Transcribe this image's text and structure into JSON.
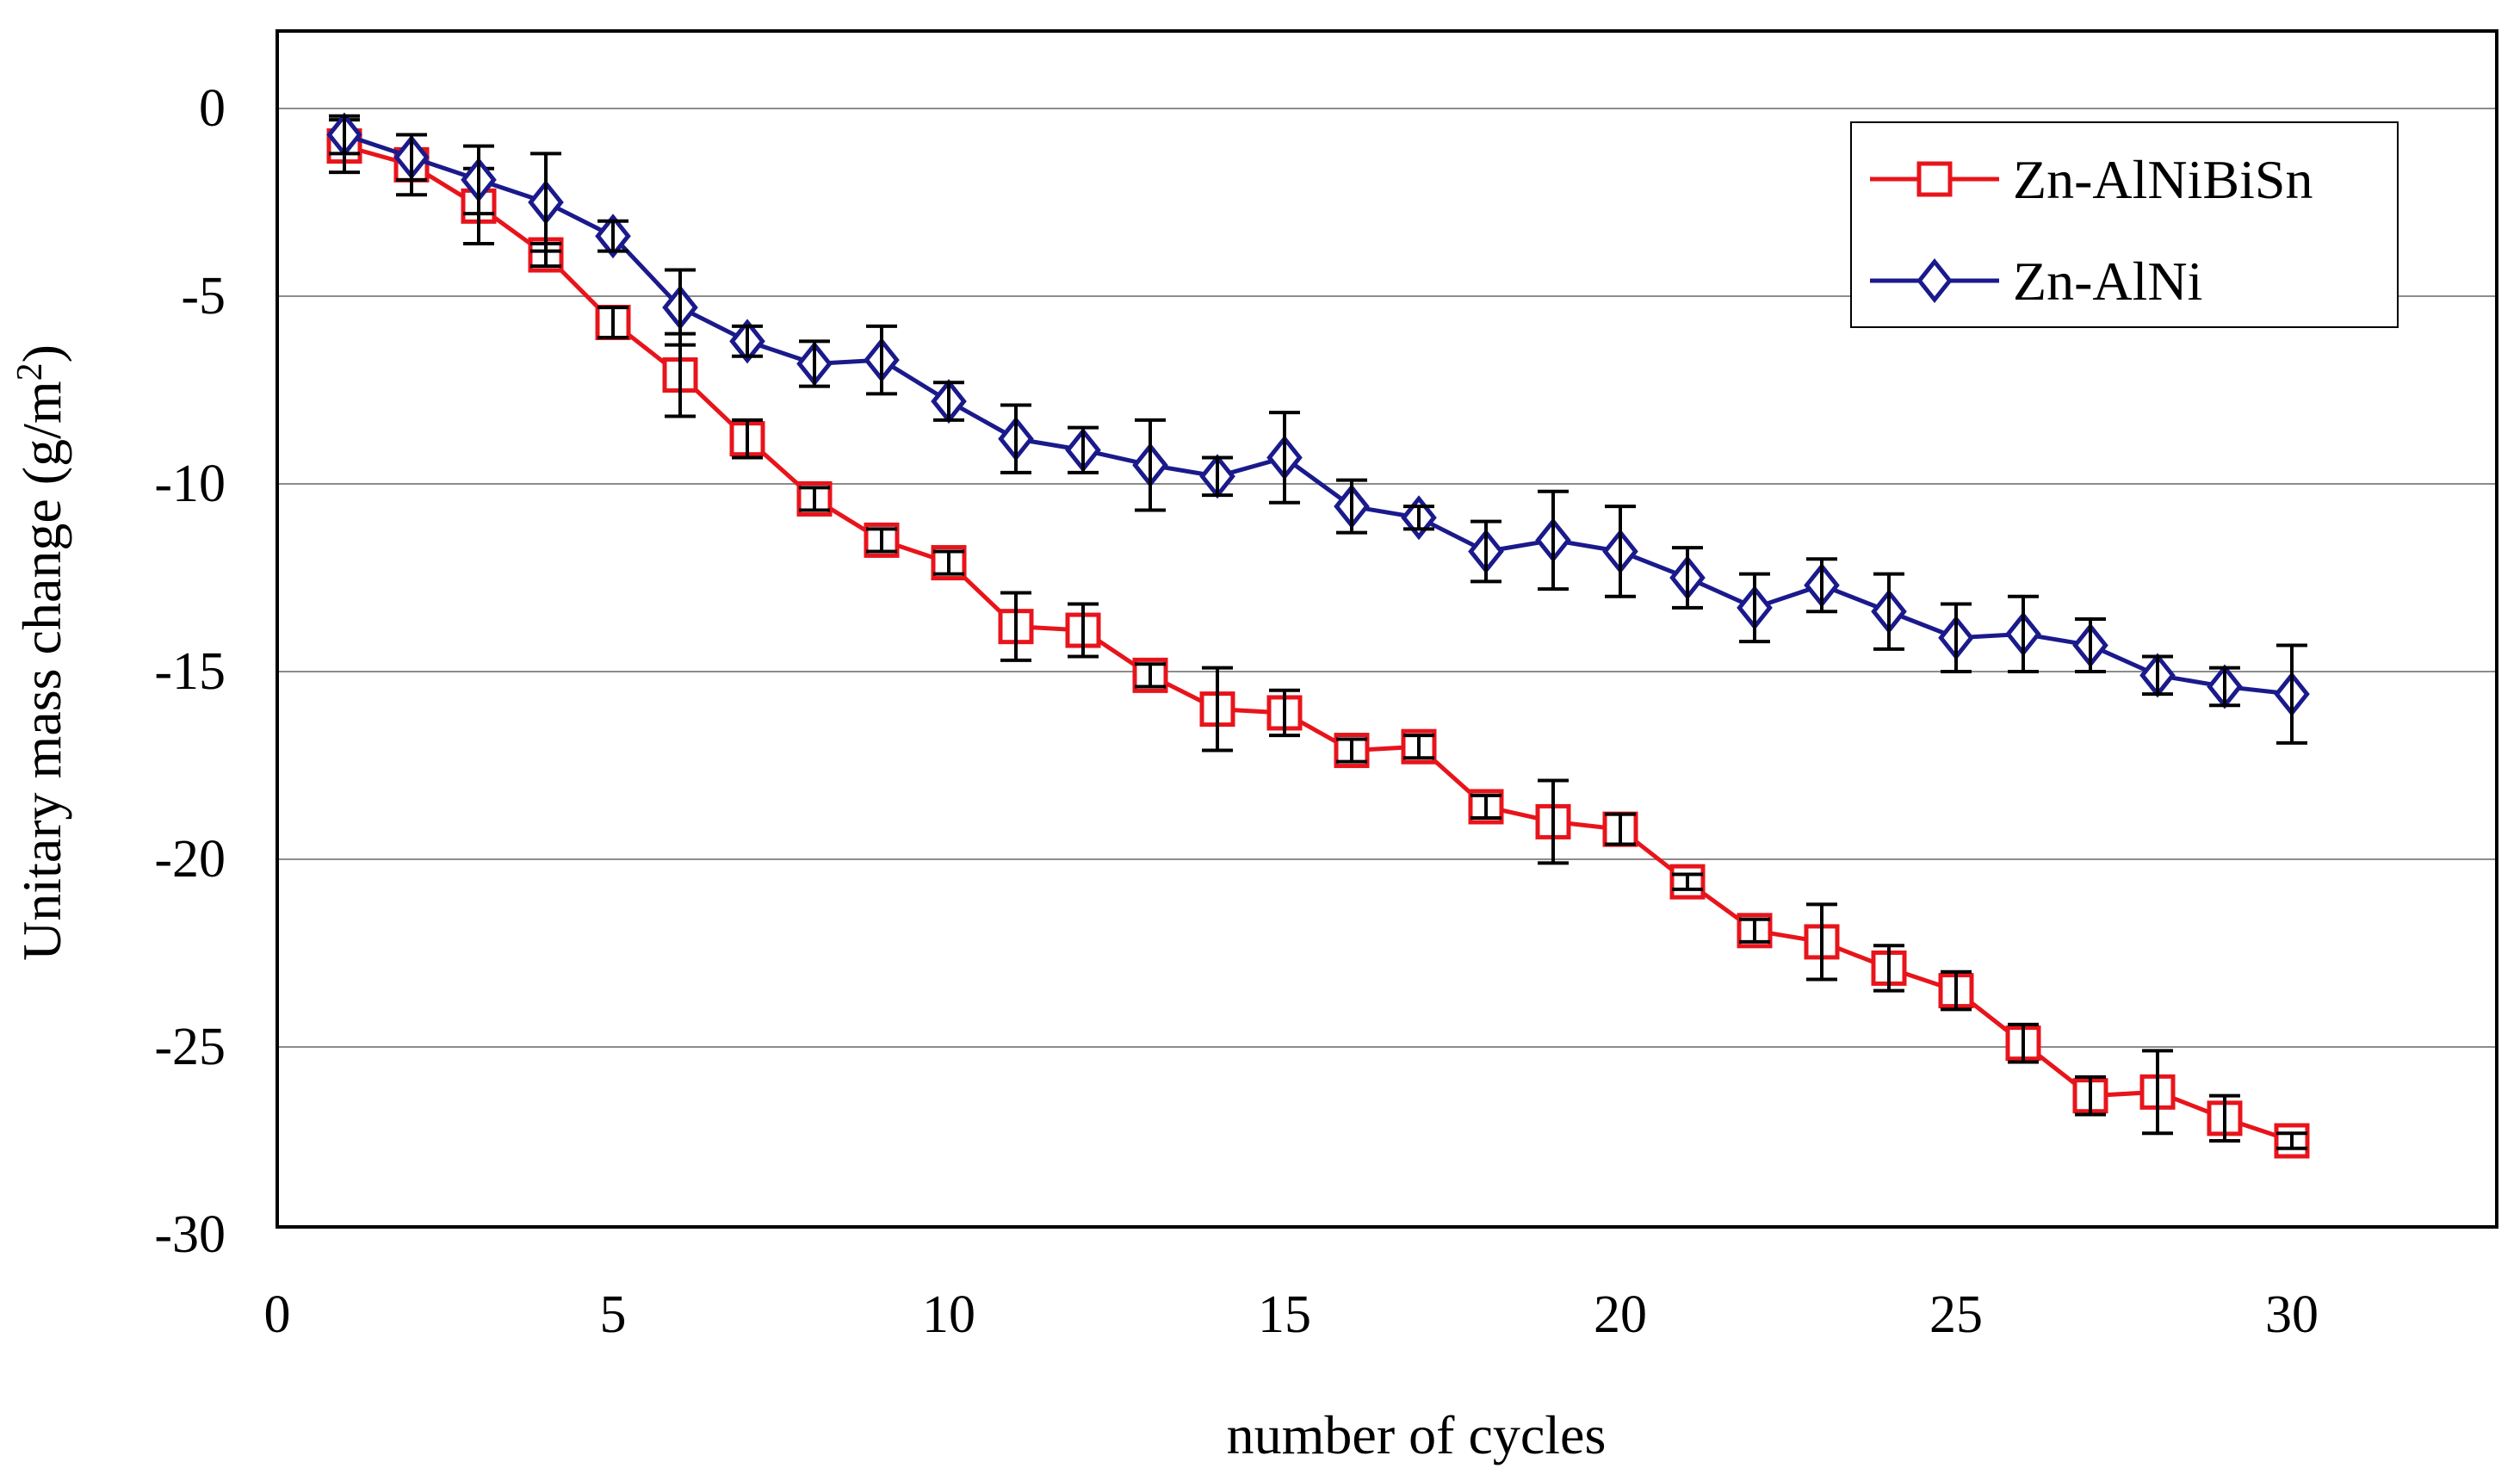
{
  "chart_data": {
    "type": "line",
    "title": "",
    "xlabel": "number of cycles",
    "ylabel_main": "Unitary mass change (g/m",
    "ylabel_sup": "2",
    "ylabel_close": ")",
    "xlim": [
      0,
      33
    ],
    "ylim": [
      -30,
      2
    ],
    "xticks": [
      0,
      5,
      10,
      15,
      20,
      25,
      30
    ],
    "yticks": [
      0,
      -5,
      -10,
      -15,
      -20,
      -25,
      -30
    ],
    "xtick_labels": [
      "0",
      "5",
      "10",
      "15",
      "20",
      "25",
      "30"
    ],
    "ytick_labels": [
      "0",
      "-5",
      "-10",
      "-15",
      "-20",
      "-25",
      "-30"
    ],
    "grid": "horizontal",
    "legend_position": "top-right",
    "series": [
      {
        "name": "Zn-AlNiBiSn",
        "color": "#e8141b",
        "marker": "square",
        "x": [
          1,
          2,
          3,
          4,
          5,
          6,
          7,
          8,
          9,
          10,
          11,
          12,
          13,
          14,
          15,
          16,
          17,
          18,
          19,
          20,
          21,
          22,
          23,
          24,
          25,
          26,
          27,
          28,
          29,
          30
        ],
        "y": [
          -1.0,
          -1.5,
          -2.6,
          -3.9,
          -5.7,
          -7.1,
          -8.8,
          -10.4,
          -11.5,
          -12.1,
          -13.8,
          -13.9,
          -15.1,
          -16.0,
          -16.1,
          -17.1,
          -17.0,
          -18.6,
          -19.0,
          -19.2,
          -20.6,
          -21.9,
          -22.2,
          -22.9,
          -23.5,
          -24.9,
          -26.3,
          -26.2,
          -26.9,
          -27.5
        ],
        "err": [
          0.7,
          0.8,
          1.0,
          0.3,
          0.4,
          1.1,
          0.5,
          0.3,
          0.3,
          0.3,
          0.9,
          0.7,
          0.3,
          1.1,
          0.6,
          0.3,
          0.3,
          0.3,
          1.1,
          0.4,
          0.2,
          0.3,
          1.0,
          0.6,
          0.5,
          0.5,
          0.5,
          1.1,
          0.6,
          0.2
        ]
      },
      {
        "name": "Zn-AlNi",
        "color": "#1a1a8c",
        "marker": "diamond",
        "x": [
          1,
          2,
          3,
          4,
          5,
          6,
          7,
          8,
          9,
          10,
          11,
          12,
          13,
          14,
          15,
          16,
          17,
          18,
          19,
          20,
          21,
          22,
          23,
          24,
          25,
          26,
          27,
          28,
          29,
          30
        ],
        "y": [
          -0.7,
          -1.3,
          -1.9,
          -2.5,
          -3.4,
          -5.3,
          -6.2,
          -6.8,
          -6.7,
          -7.8,
          -8.8,
          -9.1,
          -9.5,
          -9.8,
          -9.3,
          -10.6,
          -10.9,
          -11.8,
          -11.5,
          -11.8,
          -12.5,
          -13.3,
          -12.7,
          -13.4,
          -14.1,
          -14.0,
          -14.3,
          -15.1,
          -15.4,
          -15.6
        ],
        "err": [
          0.5,
          0.6,
          0.9,
          1.3,
          0.4,
          1.0,
          0.4,
          0.6,
          0.9,
          0.5,
          0.9,
          0.6,
          1.2,
          0.5,
          1.2,
          0.7,
          0.3,
          0.8,
          1.3,
          1.2,
          0.8,
          0.9,
          0.7,
          1.0,
          0.9,
          1.0,
          0.7,
          0.5,
          0.5,
          1.3
        ]
      }
    ]
  }
}
